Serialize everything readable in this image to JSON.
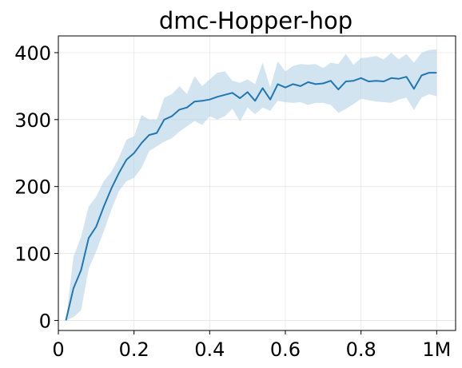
{
  "chart_data": {
    "type": "line",
    "title": "dmc-Hopper-hop",
    "xlabel": "",
    "ylabel": "",
    "xlim": [
      0,
      1.05
    ],
    "ylim": [
      -15,
      425
    ],
    "grid": true,
    "xticks": [
      {
        "value": 0,
        "label": "0"
      },
      {
        "value": 0.2,
        "label": "0.2"
      },
      {
        "value": 0.4,
        "label": "0.4"
      },
      {
        "value": 0.6,
        "label": "0.6"
      },
      {
        "value": 0.8,
        "label": "0.8"
      },
      {
        "value": 1.0,
        "label": "1M"
      }
    ],
    "yticks": [
      {
        "value": 0,
        "label": "0"
      },
      {
        "value": 100,
        "label": "100"
      },
      {
        "value": 200,
        "label": "200"
      },
      {
        "value": 300,
        "label": "300"
      },
      {
        "value": 400,
        "label": "400"
      }
    ],
    "line_color": "#1f77b4",
    "band_color": "#aecde6",
    "series": [
      {
        "x": [
          0.02,
          0.04,
          0.06,
          0.08,
          0.1,
          0.12,
          0.14,
          0.16,
          0.18,
          0.2,
          0.22,
          0.24,
          0.26,
          0.28,
          0.3,
          0.32,
          0.34,
          0.36,
          0.38,
          0.4,
          0.42,
          0.44,
          0.46,
          0.48,
          0.5,
          0.52,
          0.54,
          0.56,
          0.58,
          0.6,
          0.62,
          0.64,
          0.66,
          0.68,
          0.7,
          0.72,
          0.74,
          0.76,
          0.78,
          0.8,
          0.82,
          0.84,
          0.86,
          0.88,
          0.9,
          0.92,
          0.94,
          0.96,
          0.98,
          1.0
        ],
        "values": [
          0,
          48,
          75,
          123,
          140,
          170,
          197,
          220,
          240,
          250,
          265,
          277,
          280,
          300,
          305,
          315,
          318,
          327,
          328,
          330,
          334,
          337,
          340,
          332,
          341,
          328,
          347,
          330,
          353,
          348,
          353,
          350,
          356,
          353,
          354,
          358,
          345,
          357,
          358,
          362,
          357,
          358,
          357,
          362,
          361,
          364,
          346,
          366,
          370,
          370
        ],
        "lower": [
          0,
          5,
          15,
          77,
          103,
          133,
          165,
          193,
          208,
          213,
          228,
          253,
          260,
          267,
          272,
          282,
          290,
          298,
          292,
          305,
          300,
          305,
          316,
          297,
          318,
          308,
          318,
          313,
          328,
          326,
          325,
          326,
          322,
          325,
          325,
          322,
          310,
          316,
          323,
          331,
          329,
          327,
          326,
          325,
          330,
          333,
          314,
          333,
          338,
          335
        ],
        "upper": [
          0,
          95,
          125,
          170,
          185,
          208,
          222,
          243,
          270,
          275,
          307,
          300,
          300,
          333,
          338,
          350,
          338,
          365,
          350,
          360,
          370,
          372,
          358,
          355,
          360,
          353,
          385,
          348,
          387,
          372,
          380,
          383,
          382,
          383,
          377,
          385,
          383,
          398,
          382,
          392,
          393,
          395,
          390,
          400,
          390,
          398,
          385,
          400,
          404,
          405
        ]
      }
    ]
  }
}
